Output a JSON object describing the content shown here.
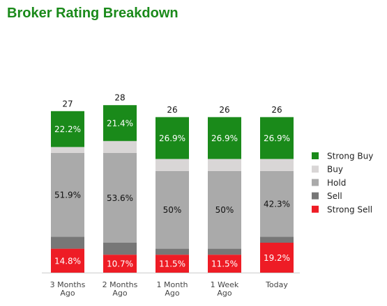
{
  "chart_data": {
    "type": "stacked-bar",
    "title": "Broker Rating Breakdown",
    "categories": [
      "3 Months Ago",
      "2 Months Ago",
      "1 Month Ago",
      "1 Week Ago",
      "Today"
    ],
    "totals": [
      27,
      28,
      26,
      26,
      26
    ],
    "series": [
      {
        "name": "Strong Sell",
        "color": "#ee1c25",
        "text_color": "#ffffff",
        "values": [
          4,
          3,
          3,
          3,
          5
        ],
        "value_labels": [
          "14.8%",
          "10.7%",
          "11.5%",
          "11.5%",
          "19.2%"
        ]
      },
      {
        "name": "Sell",
        "color": "#777777",
        "values": [
          2,
          2,
          1,
          1,
          1
        ]
      },
      {
        "name": "Hold",
        "color": "#aaaaaa",
        "text_color": "#111111",
        "values": [
          14,
          15,
          13,
          13,
          11
        ],
        "value_labels": [
          "51.9%",
          "53.6%",
          "50%",
          "50%",
          "42.3%"
        ]
      },
      {
        "name": "Buy",
        "color": "#d9d6d6",
        "values": [
          1,
          2,
          2,
          2,
          2
        ]
      },
      {
        "name": "Strong Buy",
        "color": "#1a8a1a",
        "text_color": "#ffffff",
        "values": [
          6,
          6,
          7,
          7,
          7
        ],
        "value_labels": [
          "22.2%",
          "21.4%",
          "26.9%",
          "26.9%",
          "26.9%"
        ]
      }
    ],
    "legend": "right"
  }
}
